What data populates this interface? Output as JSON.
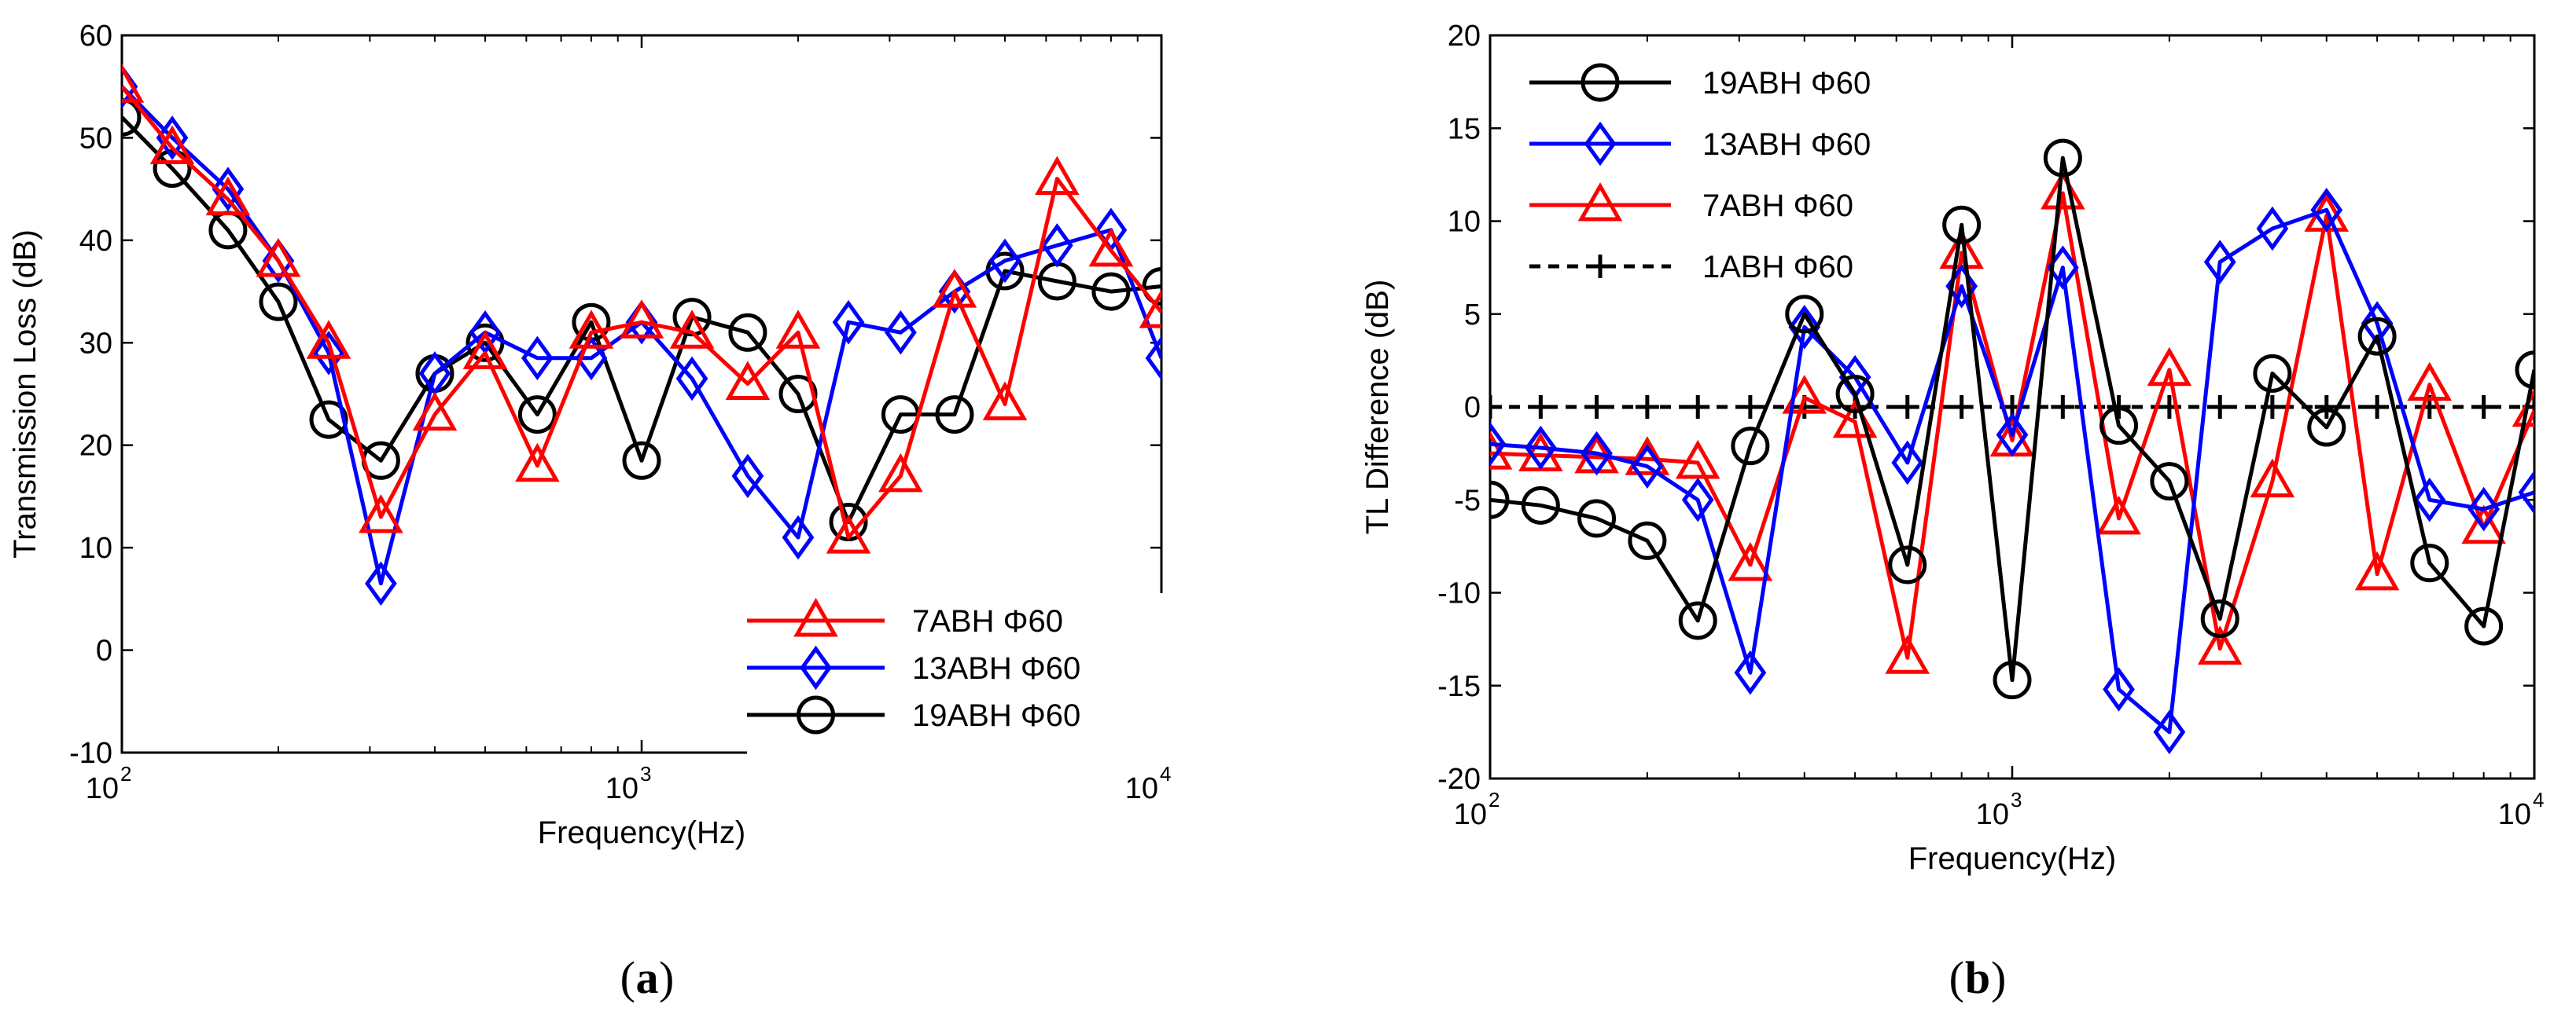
{
  "chart_data": [
    {
      "id": "a",
      "type": "line",
      "panel_label": "a",
      "xlabel": "Frequency(Hz)",
      "ylabel": "Transmission Loss (dB)",
      "xscale": "log",
      "xlim": [
        100,
        10000
      ],
      "ylim": [
        -10,
        60
      ],
      "yticks": [
        -10,
        0,
        10,
        20,
        30,
        40,
        50,
        60
      ],
      "xticks": [
        {
          "value": 100,
          "base": "10",
          "exp": "2"
        },
        {
          "value": 1000,
          "base": "10",
          "exp": "3"
        },
        {
          "value": 10000,
          "base": "10",
          "exp": "4"
        }
      ],
      "legend_position": "bottom-right",
      "x": [
        100,
        125,
        160,
        200,
        250,
        315,
        400,
        500,
        630,
        800,
        1000,
        1250,
        1600,
        2000,
        2500,
        3150,
        4000,
        5000,
        6300,
        8000,
        10000
      ],
      "series": [
        {
          "name": "7ABH Φ60",
          "color": "#ff0000",
          "marker": "triangle",
          "values": [
            55,
            49,
            44,
            38,
            30,
            13,
            23,
            29,
            18,
            31,
            32,
            31,
            26,
            31,
            11,
            17,
            35,
            24,
            46,
            39,
            33
          ]
        },
        {
          "name": "13ABH Φ60",
          "color": "#0000ff",
          "marker": "diamond",
          "values": [
            55,
            50,
            45,
            38,
            29,
            6.5,
            27,
            31,
            28.5,
            28.5,
            32,
            26.5,
            17,
            11,
            32,
            31,
            35,
            38,
            39.5,
            41,
            28.5
          ]
        },
        {
          "name": "19ABH Φ60",
          "color": "#000000",
          "marker": "circle",
          "values": [
            52,
            47,
            41,
            34,
            22.5,
            18.5,
            27,
            30,
            23,
            32,
            18.5,
            32.5,
            31,
            25,
            12.5,
            23,
            23,
            37,
            36,
            35,
            35.5
          ]
        }
      ]
    },
    {
      "id": "b",
      "type": "line",
      "panel_label": "b",
      "xlabel": "Frequency(Hz)",
      "ylabel": "TL Difference (dB)",
      "xscale": "log",
      "xlim": [
        100,
        10000
      ],
      "ylim": [
        -20,
        20
      ],
      "yticks": [
        -20,
        -15,
        -10,
        -5,
        0,
        5,
        10,
        15,
        20
      ],
      "xticks": [
        {
          "value": 100,
          "base": "10",
          "exp": "2"
        },
        {
          "value": 1000,
          "base": "10",
          "exp": "3"
        },
        {
          "value": 10000,
          "base": "10",
          "exp": "4"
        }
      ],
      "legend_position": "top-left",
      "x": [
        100,
        125,
        160,
        200,
        250,
        315,
        400,
        500,
        630,
        800,
        1000,
        1250,
        1600,
        2000,
        2500,
        3150,
        4000,
        5000,
        6300,
        8000,
        10000
      ],
      "series": [
        {
          "name": "19ABH Φ60",
          "color": "#000000",
          "marker": "circle",
          "values": [
            -5,
            -5.3,
            -6,
            -7.2,
            -11.5,
            -2.1,
            5,
            0.7,
            -8.5,
            9.8,
            -14.7,
            13.4,
            -1,
            -4,
            -11.4,
            1.8,
            -1.1,
            3.8,
            -8.4,
            -11.8,
            2
          ]
        },
        {
          "name": "13ABH Φ60",
          "color": "#0000ff",
          "marker": "diamond",
          "values": [
            -2,
            -2.2,
            -2.5,
            -3.2,
            -5,
            -14.3,
            4.3,
            1.6,
            -3,
            6.5,
            -1.5,
            7.5,
            -15.2,
            -17.5,
            7.8,
            9.6,
            10.6,
            4.5,
            -5,
            -5.5,
            -4.6
          ]
        },
        {
          "name": "7ABH Φ60",
          "color": "#ff0000",
          "marker": "triangle",
          "values": [
            -2.5,
            -2.6,
            -2.7,
            -2.8,
            -3,
            -8.5,
            0.5,
            -0.8,
            -13.5,
            8.3,
            -1.8,
            11.5,
            -6,
            2,
            -13,
            -4,
            10.3,
            -9,
            1.2,
            -6.5,
            -0.2
          ]
        },
        {
          "name": "1ABH Φ60",
          "color": "#000000",
          "marker": "plus",
          "dashed": true,
          "values": [
            0,
            0,
            0,
            0,
            0,
            0,
            0,
            0,
            0,
            0,
            0,
            0,
            0,
            0,
            0,
            0,
            0,
            0,
            0,
            0,
            0
          ]
        }
      ]
    }
  ]
}
